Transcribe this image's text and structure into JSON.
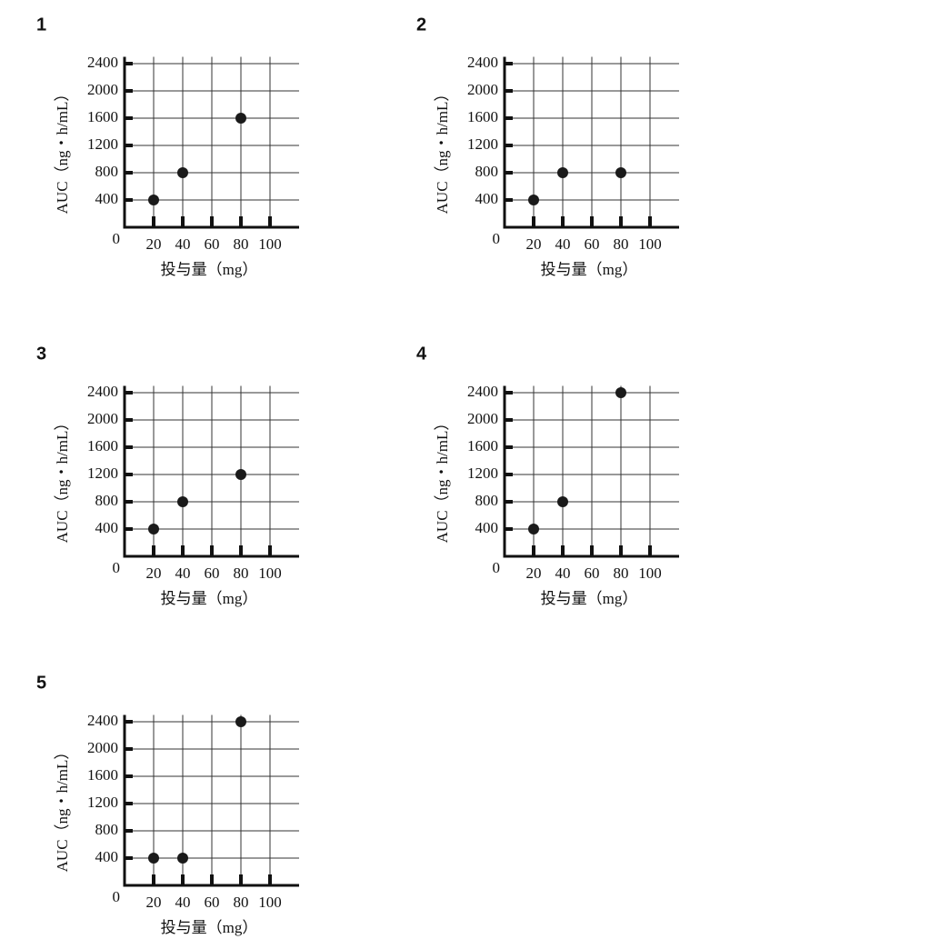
{
  "chart_data": [
    {
      "type": "scatter",
      "title": "1",
      "xlabel": "投与量（mg）",
      "ylabel": "AUC（ng・h/mL）",
      "x": [
        20,
        40,
        80
      ],
      "values": [
        400,
        800,
        1600
      ],
      "color": "#1a1a1a",
      "xlim": [
        0,
        120
      ],
      "ylim": [
        0,
        2500
      ],
      "xticks": [
        0,
        20,
        40,
        60,
        80,
        100
      ],
      "yticks": [
        400,
        800,
        1200,
        1600,
        2000,
        2400
      ],
      "grid": true
    },
    {
      "type": "scatter",
      "title": "2",
      "xlabel": "投与量（mg）",
      "ylabel": "AUC（ng・h/mL）",
      "x": [
        20,
        40,
        80
      ],
      "values": [
        400,
        800,
        800
      ],
      "color": "#1a1a1a",
      "xlim": [
        0,
        120
      ],
      "ylim": [
        0,
        2500
      ],
      "xticks": [
        0,
        20,
        40,
        60,
        80,
        100
      ],
      "yticks": [
        400,
        800,
        1200,
        1600,
        2000,
        2400
      ],
      "grid": true
    },
    {
      "type": "scatter",
      "title": "3",
      "xlabel": "投与量（mg）",
      "ylabel": "AUC（ng・h/mL）",
      "x": [
        20,
        40,
        80
      ],
      "values": [
        400,
        800,
        1200
      ],
      "color": "#1a1a1a",
      "xlim": [
        0,
        120
      ],
      "ylim": [
        0,
        2500
      ],
      "xticks": [
        0,
        20,
        40,
        60,
        80,
        100
      ],
      "yticks": [
        400,
        800,
        1200,
        1600,
        2000,
        2400
      ],
      "grid": true
    },
    {
      "type": "scatter",
      "title": "4",
      "xlabel": "投与量（mg）",
      "ylabel": "AUC（ng・h/mL）",
      "x": [
        20,
        40,
        80
      ],
      "values": [
        400,
        800,
        2400
      ],
      "color": "#1a1a1a",
      "xlim": [
        0,
        120
      ],
      "ylim": [
        0,
        2500
      ],
      "xticks": [
        0,
        20,
        40,
        60,
        80,
        100
      ],
      "yticks": [
        400,
        800,
        1200,
        1600,
        2000,
        2400
      ],
      "grid": true
    },
    {
      "type": "scatter",
      "title": "5",
      "xlabel": "投与量（mg）",
      "ylabel": "AUC（ng・h/mL）",
      "x": [
        20,
        40,
        80
      ],
      "values": [
        400,
        400,
        2400
      ],
      "color": "#1a1a1a",
      "xlim": [
        0,
        120
      ],
      "ylim": [
        0,
        2500
      ],
      "xticks": [
        0,
        20,
        40,
        60,
        80,
        100
      ],
      "yticks": [
        400,
        800,
        1200,
        1600,
        2000,
        2400
      ],
      "grid": true
    }
  ]
}
